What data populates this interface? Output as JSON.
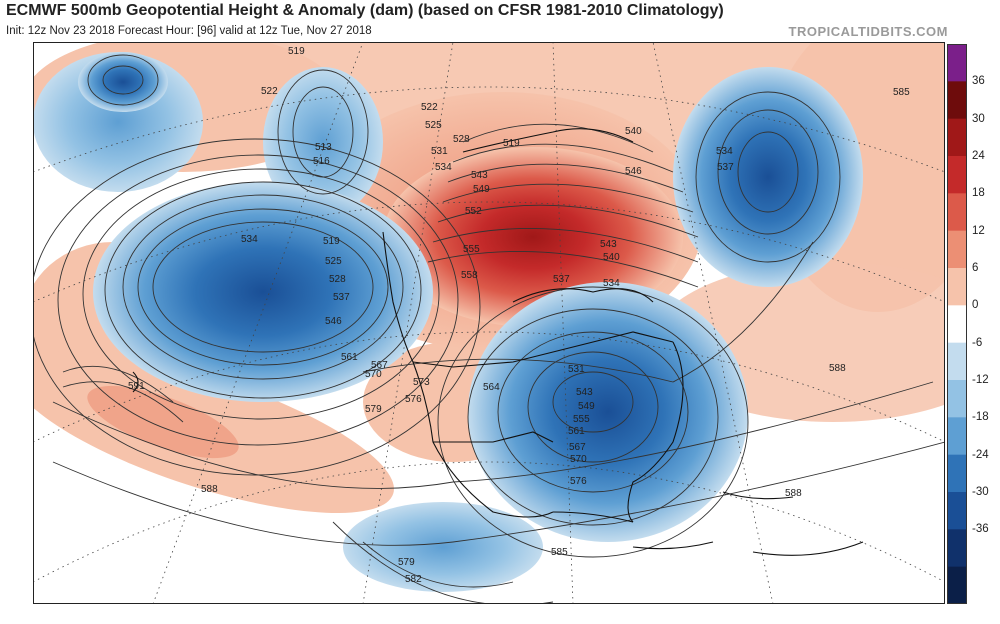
{
  "header": {
    "title": "ECMWF 500mb Geopotential Height & Anomaly (dam) (based on CFSR 1981-2010 Climatology)",
    "subtitle": "Init: 12z Nov 23 2018   Forecast Hour: [96]   valid at 12z Tue, Nov 27 2018",
    "brand": "TROPICALTIDBITS.COM"
  },
  "colorbar": {
    "labels": [
      "36",
      "30",
      "24",
      "18",
      "12",
      "6",
      "0",
      "-6",
      "-12",
      "-18",
      "-24",
      "-30",
      "-36"
    ],
    "colors": [
      "#7b1f8a",
      "#6e0c0c",
      "#a01818",
      "#c42a2a",
      "#dc5a4a",
      "#ec8f74",
      "#f6c3ab",
      "#ffffff",
      "#c3dcee",
      "#93c2e4",
      "#5e9fd3",
      "#2f73b7",
      "#1a4f96",
      "#10316b",
      "#0b1f48"
    ]
  },
  "contour_labels": [
    {
      "text": "519"
    },
    {
      "text": "522"
    },
    {
      "text": "516"
    },
    {
      "text": "513"
    },
    {
      "text": "534"
    },
    {
      "text": "519"
    },
    {
      "text": "525"
    },
    {
      "text": "528"
    },
    {
      "text": "537"
    },
    {
      "text": "546"
    },
    {
      "text": "561"
    },
    {
      "text": "567"
    },
    {
      "text": "570"
    },
    {
      "text": "573"
    },
    {
      "text": "576"
    },
    {
      "text": "579"
    },
    {
      "text": "564"
    },
    {
      "text": "522"
    },
    {
      "text": "525"
    },
    {
      "text": "528"
    },
    {
      "text": "531"
    },
    {
      "text": "534"
    },
    {
      "text": "540"
    },
    {
      "text": "543"
    },
    {
      "text": "546"
    },
    {
      "text": "549"
    },
    {
      "text": "552"
    },
    {
      "text": "555"
    },
    {
      "text": "558"
    },
    {
      "text": "519"
    },
    {
      "text": "537"
    },
    {
      "text": "540"
    },
    {
      "text": "543"
    },
    {
      "text": "534"
    },
    {
      "text": "531"
    },
    {
      "text": "543"
    },
    {
      "text": "549"
    },
    {
      "text": "555"
    },
    {
      "text": "561"
    },
    {
      "text": "567"
    },
    {
      "text": "570"
    },
    {
      "text": "576"
    },
    {
      "text": "534"
    },
    {
      "text": "537"
    },
    {
      "text": "585"
    },
    {
      "text": "588"
    },
    {
      "text": "591"
    },
    {
      "text": "588"
    },
    {
      "text": "579"
    },
    {
      "text": "582"
    },
    {
      "text": "585"
    },
    {
      "text": "588"
    }
  ]
}
